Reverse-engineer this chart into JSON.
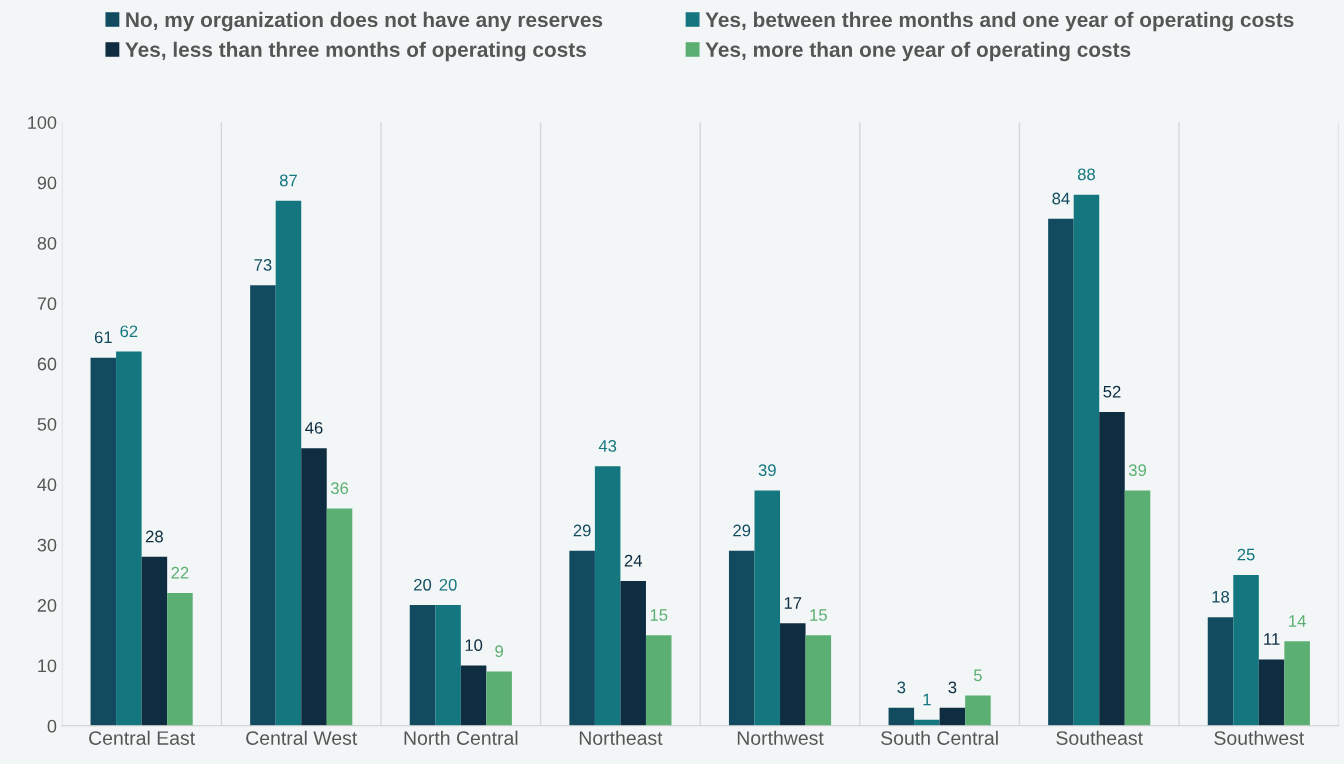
{
  "chart_data": {
    "type": "bar",
    "categories": [
      "Central East",
      "Central West",
      "North Central",
      "Northeast",
      "Northwest",
      "South Central",
      "Southeast",
      "Southwest"
    ],
    "series": [
      {
        "name": "No, my organization does not have any reserves",
        "color": "#124b5f",
        "values": [
          61,
          73,
          20,
          29,
          29,
          3,
          84,
          18
        ]
      },
      {
        "name": "Yes, between three months and one year of operating costs",
        "color": "#14767f",
        "values": [
          62,
          87,
          20,
          43,
          39,
          1,
          88,
          25
        ]
      },
      {
        "name": "Yes, less than three months of operating costs",
        "color": "#0f2d41",
        "values": [
          28,
          46,
          10,
          24,
          17,
          3,
          52,
          11
        ]
      },
      {
        "name": "Yes, more than one year of operating costs",
        "color": "#5baf72",
        "values": [
          22,
          36,
          9,
          15,
          15,
          5,
          39,
          14
        ]
      }
    ],
    "ylim": [
      0,
      100
    ],
    "yticks": [
      0,
      10,
      20,
      30,
      40,
      50,
      60,
      70,
      80,
      90,
      100
    ],
    "grid": "x",
    "legend": "top",
    "data_labels": true
  }
}
